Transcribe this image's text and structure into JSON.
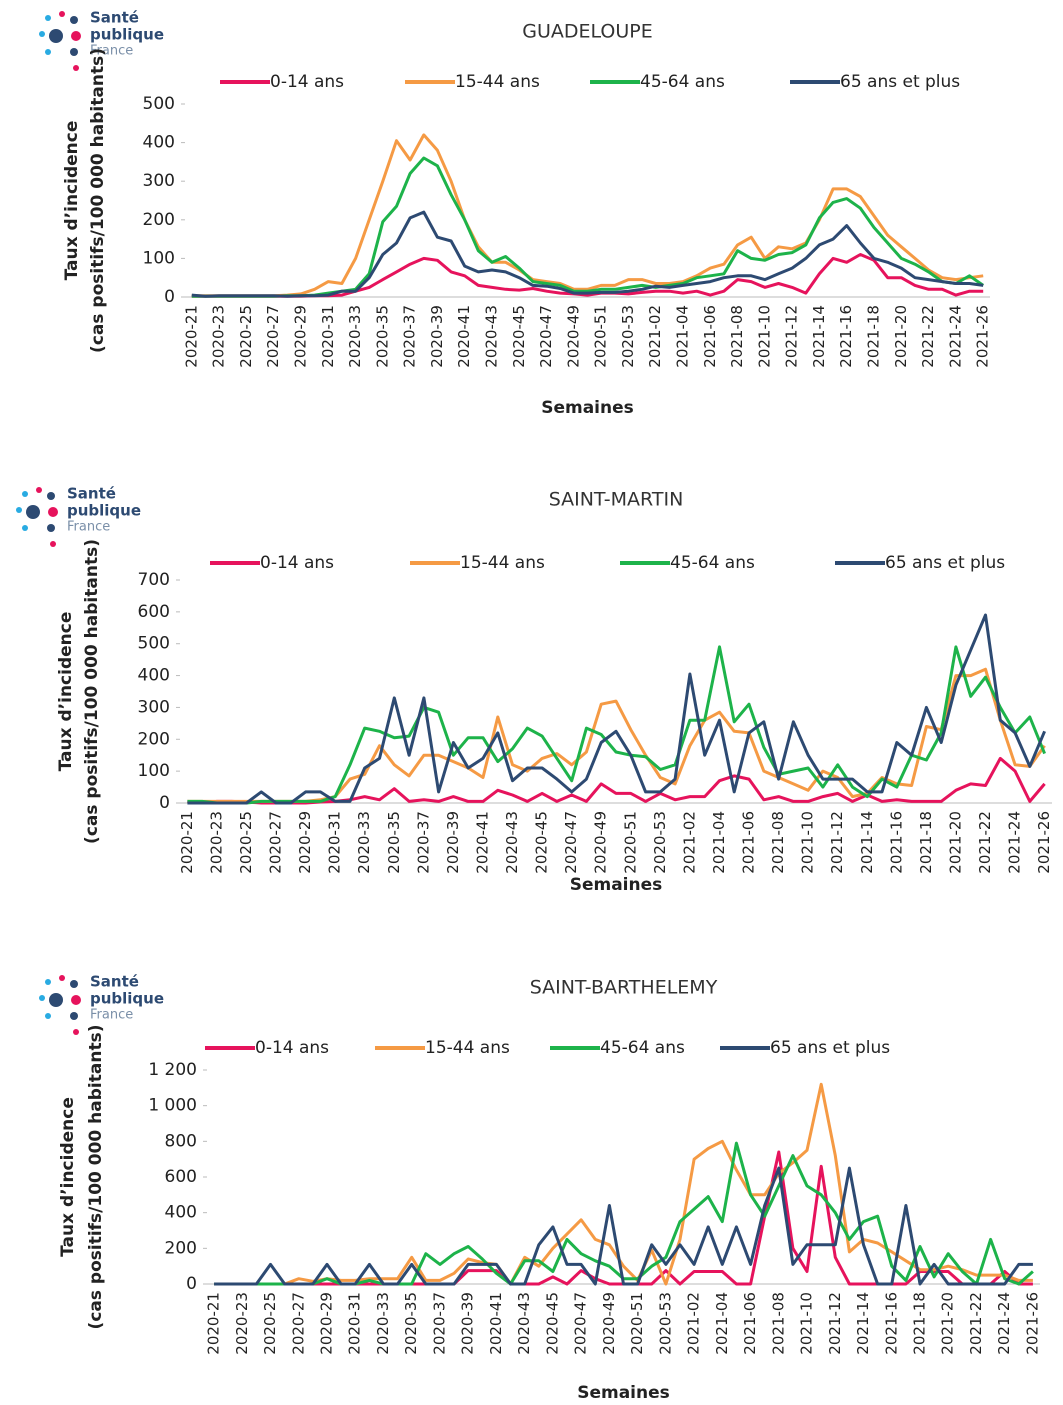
{
  "logo": {
    "line1": "Santé",
    "line2": "publique",
    "line3": "France"
  },
  "chart_data": [
    {
      "type": "line",
      "title": "GUADELOUPE",
      "x_label": "Semaines",
      "y_label": [
        "Taux d’incidence",
        "(cas positifs/100 000 habitants)"
      ],
      "categories": [
        "2020-21",
        null,
        "2020-23",
        null,
        "2020-25",
        null,
        "2020-27",
        null,
        "2020-29",
        null,
        "2020-31",
        null,
        "2020-33",
        null,
        "2020-35",
        null,
        "2020-37",
        null,
        "2020-39",
        null,
        "2020-41",
        null,
        "2020-43",
        null,
        "2020-45",
        null,
        "2020-47",
        null,
        "2020-49",
        null,
        "2020-51",
        null,
        "2020-53",
        null,
        "2021-02",
        null,
        "2021-04",
        null,
        "2021-06",
        null,
        "2021-08",
        null,
        "2021-10",
        null,
        "2021-12",
        null,
        "2021-14",
        null,
        "2021-16",
        null,
        "2021-18",
        null,
        "2021-20",
        null,
        "2021-22",
        null,
        "2021-24",
        null,
        "2021-26"
      ],
      "ylim": [
        0,
        500
      ],
      "yticks": [
        0,
        100,
        200,
        300,
        400,
        500
      ],
      "grid": false,
      "legend": "top",
      "series": [
        {
          "name": "0-14 ans",
          "color": "#e6135c",
          "values": [
            2,
            2,
            2,
            2,
            2,
            2,
            2,
            2,
            2,
            3,
            3,
            5,
            15,
            25,
            45,
            65,
            85,
            100,
            95,
            65,
            55,
            30,
            25,
            20,
            18,
            22,
            15,
            10,
            8,
            5,
            10,
            10,
            8,
            12,
            15,
            15,
            10,
            15,
            5,
            15,
            45,
            40,
            25,
            35,
            25,
            10,
            60,
            100,
            90,
            110,
            95,
            50,
            50,
            30,
            20,
            20,
            5,
            15,
            15
          ]
        },
        {
          "name": "15-44 ans",
          "color": "#f59a44",
          "values": [
            3,
            3,
            3,
            3,
            3,
            3,
            3,
            5,
            8,
            20,
            40,
            35,
            100,
            200,
            300,
            405,
            355,
            420,
            380,
            300,
            200,
            130,
            90,
            90,
            70,
            45,
            40,
            35,
            20,
            20,
            30,
            30,
            45,
            45,
            35,
            35,
            40,
            55,
            75,
            85,
            135,
            155,
            100,
            130,
            125,
            140,
            200,
            280,
            280,
            260,
            210,
            160,
            130,
            100,
            70,
            50,
            45,
            50,
            55
          ]
        },
        {
          "name": "45-64 ans",
          "color": "#1db34a",
          "values": [
            2,
            2,
            2,
            2,
            2,
            2,
            2,
            3,
            3,
            5,
            10,
            15,
            20,
            60,
            195,
            235,
            320,
            360,
            340,
            265,
            200,
            120,
            90,
            105,
            75,
            40,
            35,
            30,
            15,
            15,
            20,
            20,
            25,
            30,
            25,
            30,
            35,
            50,
            55,
            60,
            120,
            100,
            95,
            110,
            115,
            135,
            205,
            245,
            255,
            230,
            180,
            140,
            100,
            85,
            65,
            40,
            35,
            55,
            30
          ]
        },
        {
          "name": "65 ans et plus",
          "color": "#2d4a72",
          "values": [
            5,
            2,
            3,
            3,
            3,
            3,
            3,
            2,
            3,
            3,
            5,
            15,
            15,
            50,
            110,
            140,
            205,
            220,
            155,
            145,
            80,
            65,
            70,
            65,
            50,
            30,
            28,
            22,
            10,
            10,
            12,
            12,
            15,
            20,
            28,
            25,
            30,
            35,
            40,
            50,
            55,
            55,
            45,
            60,
            75,
            100,
            135,
            150,
            185,
            140,
            100,
            90,
            75,
            50,
            45,
            40,
            35,
            35,
            30
          ]
        }
      ]
    },
    {
      "type": "line",
      "title": "SAINT-MARTIN",
      "x_label": "Semaines",
      "y_label": [
        "Taux d’incidence",
        "(cas positifs/100 000 habitants)"
      ],
      "categories": [
        "2020-21",
        null,
        "2020-23",
        null,
        "2020-25",
        null,
        "2020-27",
        null,
        "2020-29",
        null,
        "2020-31",
        null,
        "2020-33",
        null,
        "2020-35",
        null,
        "2020-37",
        null,
        "2020-39",
        null,
        "2020-41",
        null,
        "2020-43",
        null,
        "2020-45",
        null,
        "2020-47",
        null,
        "2020-49",
        null,
        "2020-51",
        null,
        "2020-53",
        null,
        "2021-02",
        null,
        "2021-04",
        null,
        "2021-06",
        null,
        "2021-08",
        null,
        "2021-10",
        null,
        "2021-12",
        null,
        "2021-14",
        null,
        "2021-16",
        null,
        "2021-18",
        null,
        "2021-20",
        null,
        "2021-22",
        null,
        "2021-24",
        null,
        "2021-26"
      ],
      "ylim": [
        0,
        700
      ],
      "yticks": [
        0,
        100,
        200,
        300,
        400,
        500,
        600,
        700
      ],
      "grid": false,
      "legend": "top",
      "series": [
        {
          "name": "0-14 ans",
          "color": "#e6135c",
          "values": [
            5,
            0,
            5,
            5,
            3,
            0,
            0,
            0,
            0,
            3,
            5,
            10,
            20,
            10,
            45,
            5,
            10,
            5,
            20,
            5,
            5,
            40,
            25,
            5,
            30,
            5,
            25,
            5,
            60,
            30,
            30,
            5,
            30,
            10,
            20,
            20,
            70,
            85,
            75,
            10,
            20,
            5,
            5,
            20,
            30,
            5,
            25,
            5,
            10,
            5,
            5,
            5,
            40,
            60,
            55,
            140,
            100,
            5,
            60
          ]
        },
        {
          "name": "15-44 ans",
          "color": "#f59a44",
          "values": [
            5,
            5,
            5,
            5,
            5,
            5,
            5,
            5,
            5,
            10,
            20,
            75,
            90,
            180,
            120,
            85,
            150,
            150,
            130,
            110,
            80,
            270,
            120,
            100,
            140,
            155,
            120,
            160,
            310,
            320,
            230,
            150,
            80,
            60,
            180,
            260,
            285,
            225,
            220,
            100,
            80,
            60,
            40,
            100,
            80,
            20,
            30,
            80,
            60,
            55,
            240,
            230,
            400,
            400,
            420,
            260,
            120,
            115,
            180
          ]
        },
        {
          "name": "45-64 ans",
          "color": "#1db34a",
          "values": [
            5,
            5,
            0,
            0,
            0,
            5,
            5,
            5,
            5,
            5,
            20,
            120,
            235,
            225,
            205,
            210,
            300,
            285,
            150,
            205,
            205,
            130,
            170,
            235,
            210,
            140,
            70,
            235,
            215,
            160,
            150,
            145,
            105,
            120,
            260,
            260,
            490,
            255,
            310,
            175,
            90,
            100,
            110,
            50,
            120,
            50,
            20,
            75,
            50,
            150,
            135,
            220,
            490,
            335,
            395,
            300,
            220,
            270,
            155
          ]
        },
        {
          "name": "65 ans et plus",
          "color": "#2d4a72",
          "values": [
            0,
            0,
            0,
            0,
            0,
            35,
            0,
            0,
            35,
            35,
            5,
            5,
            110,
            140,
            330,
            150,
            330,
            35,
            190,
            110,
            140,
            220,
            70,
            110,
            110,
            75,
            35,
            75,
            190,
            225,
            150,
            35,
            35,
            75,
            405,
            150,
            260,
            35,
            220,
            255,
            75,
            255,
            150,
            75,
            75,
            75,
            35,
            35,
            190,
            150,
            300,
            190,
            370,
            480,
            590,
            260,
            220,
            115,
            225
          ]
        }
      ]
    },
    {
      "type": "line",
      "title": "SAINT-BARTHELEMY",
      "x_label": "Semaines",
      "y_label": [
        "Taux d’incidence",
        "(cas positifs/100 000 habitants)"
      ],
      "categories": [
        "2020-21",
        null,
        "2020-23",
        null,
        "2020-25",
        null,
        "2020-27",
        null,
        "2020-29",
        null,
        "2020-31",
        null,
        "2020-33",
        null,
        "2020-35",
        null,
        "2020-37",
        null,
        "2020-39",
        null,
        "2020-41",
        null,
        "2020-43",
        null,
        "2020-45",
        null,
        "2020-47",
        null,
        "2020-49",
        null,
        "2020-51",
        null,
        "2020-53",
        null,
        "2021-02",
        null,
        "2021-04",
        null,
        "2021-06",
        null,
        "2021-08",
        null,
        "2021-10",
        null,
        "2021-12",
        null,
        "2021-14",
        null,
        "2021-16",
        null,
        "2021-18",
        null,
        "2021-20",
        null,
        "2021-22",
        null,
        "2021-24",
        null,
        "2021-26"
      ],
      "ylim": [
        0,
        1200
      ],
      "yticks": [
        0,
        200,
        400,
        600,
        800,
        {
          "value": 1000,
          "label": "1 000"
        },
        {
          "value": 1200,
          "label": "1 200"
        }
      ],
      "grid": false,
      "legend": "top",
      "series": [
        {
          "name": "0-14 ans",
          "color": "#e6135c",
          "values": [
            0,
            0,
            0,
            0,
            0,
            0,
            0,
            0,
            0,
            0,
            0,
            0,
            0,
            0,
            0,
            0,
            0,
            0,
            75,
            75,
            75,
            0,
            0,
            0,
            40,
            0,
            75,
            30,
            0,
            0,
            0,
            0,
            75,
            0,
            70,
            70,
            70,
            0,
            0,
            380,
            740,
            200,
            70,
            660,
            150,
            0,
            0,
            0,
            0,
            0,
            70,
            70,
            70,
            0,
            0,
            0,
            70,
            0,
            0
          ]
        },
        {
          "name": "15-44 ans",
          "color": "#f59a44",
          "values": [
            0,
            0,
            0,
            0,
            0,
            0,
            30,
            15,
            30,
            20,
            20,
            30,
            30,
            30,
            150,
            20,
            20,
            60,
            140,
            120,
            110,
            0,
            150,
            100,
            200,
            280,
            360,
            250,
            220,
            100,
            20,
            190,
            0,
            250,
            700,
            760,
            800,
            640,
            500,
            500,
            620,
            680,
            750,
            1120,
            720,
            180,
            250,
            230,
            180,
            130,
            80,
            80,
            100,
            80,
            50,
            50,
            50,
            20,
            20
          ]
        },
        {
          "name": "45-64 ans",
          "color": "#1db34a",
          "values": [
            0,
            0,
            0,
            0,
            0,
            0,
            0,
            0,
            30,
            0,
            0,
            20,
            0,
            0,
            0,
            170,
            110,
            170,
            210,
            140,
            60,
            0,
            130,
            130,
            70,
            250,
            170,
            130,
            100,
            30,
            30,
            100,
            150,
            350,
            420,
            490,
            350,
            790,
            500,
            380,
            550,
            720,
            550,
            500,
            400,
            250,
            350,
            380,
            100,
            20,
            210,
            40,
            170,
            70,
            0,
            250,
            30,
            0,
            70
          ]
        },
        {
          "name": "65 ans et plus",
          "color": "#2d4a72",
          "values": [
            0,
            0,
            0,
            0,
            110,
            0,
            0,
            0,
            110,
            0,
            0,
            110,
            0,
            0,
            110,
            0,
            0,
            0,
            110,
            110,
            110,
            0,
            0,
            220,
            320,
            110,
            110,
            0,
            440,
            0,
            0,
            220,
            110,
            220,
            110,
            320,
            110,
            320,
            110,
            440,
            650,
            110,
            220,
            220,
            220,
            650,
            220,
            0,
            0,
            440,
            0,
            110,
            0,
            0,
            0,
            0,
            0,
            110,
            110
          ]
        }
      ]
    }
  ]
}
